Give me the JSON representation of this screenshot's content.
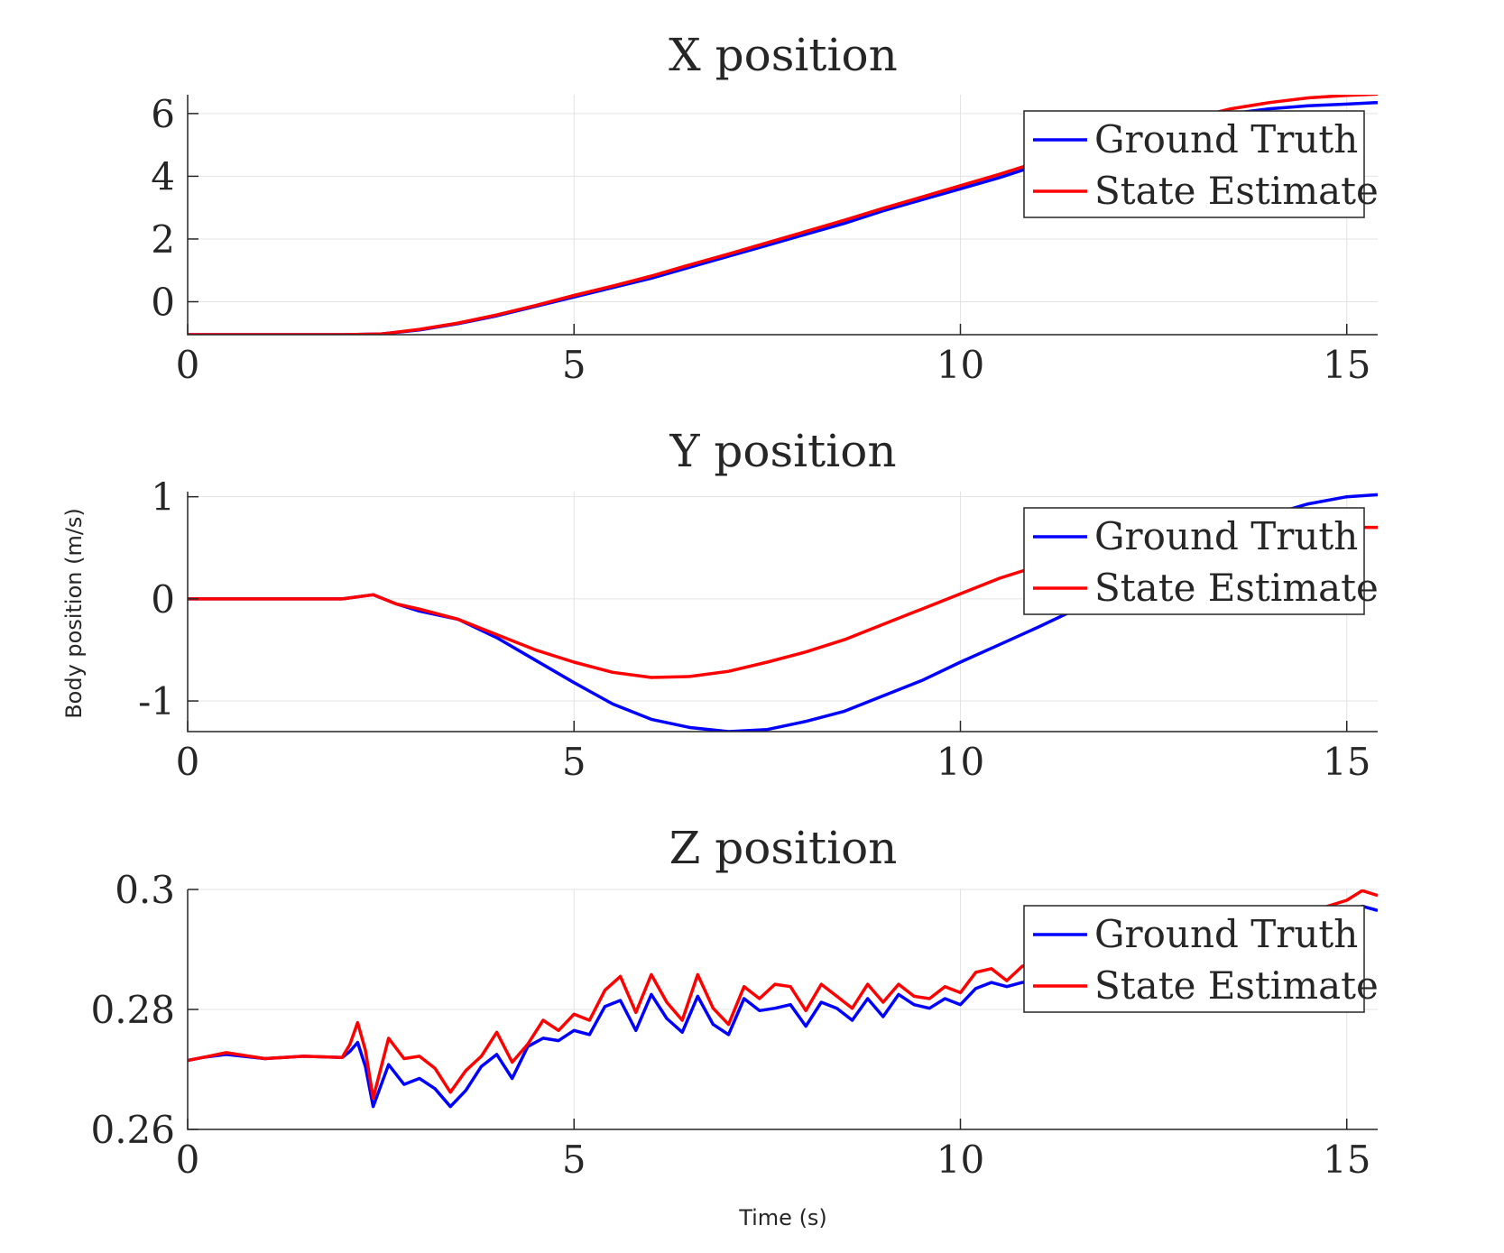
{
  "figure": {
    "ylabel": "Body position (m/s)",
    "xlabel": "Time (s)"
  },
  "colors": {
    "ground_truth": "#0000ff",
    "state_estimate": "#ff0000",
    "axis": "#262626",
    "grid": "#e3e3e3"
  },
  "chart_data": [
    {
      "type": "line",
      "title": "X position",
      "xlabel": "",
      "ylabel": "",
      "xlim": [
        0,
        15.4
      ],
      "ylim": [
        -1.05,
        6.6
      ],
      "xticks": [
        0,
        5,
        10,
        15
      ],
      "yticks": [
        0,
        2,
        4,
        6
      ],
      "ytick_labels": [
        "0",
        "2",
        "4",
        "6"
      ],
      "grid": true,
      "legend": "top-right",
      "series": [
        {
          "name": "Ground Truth",
          "color": "#0000ff",
          "x": [
            0,
            1,
            2,
            2.5,
            3,
            3.5,
            4,
            4.5,
            5,
            5.5,
            6,
            6.5,
            7,
            7.5,
            8,
            8.5,
            9,
            9.5,
            10,
            10.5,
            11,
            11.5,
            12,
            12.5,
            13,
            13.5,
            14,
            14.5,
            15,
            15.4
          ],
          "y": [
            -1.05,
            -1.05,
            -1.05,
            -1.03,
            -0.9,
            -0.7,
            -0.45,
            -0.15,
            0.15,
            0.45,
            0.75,
            1.1,
            1.45,
            1.8,
            2.15,
            2.5,
            2.9,
            3.25,
            3.6,
            3.95,
            4.35,
            4.7,
            5.05,
            5.4,
            5.75,
            6.0,
            6.15,
            6.25,
            6.3,
            6.35
          ]
        },
        {
          "name": "State Estimate",
          "color": "#ff0000",
          "x": [
            0,
            1,
            2,
            2.5,
            3,
            3.5,
            4,
            4.5,
            5,
            5.5,
            6,
            6.5,
            7,
            7.5,
            8,
            8.5,
            9,
            9.5,
            10,
            10.5,
            11,
            11.5,
            12,
            12.5,
            13,
            13.5,
            14,
            14.5,
            15,
            15.4
          ],
          "y": [
            -1.05,
            -1.05,
            -1.05,
            -1.03,
            -0.88,
            -0.68,
            -0.42,
            -0.12,
            0.2,
            0.5,
            0.82,
            1.18,
            1.52,
            1.88,
            2.24,
            2.6,
            2.98,
            3.34,
            3.7,
            4.06,
            4.45,
            4.8,
            5.15,
            5.5,
            5.85,
            6.15,
            6.35,
            6.5,
            6.58,
            6.62
          ]
        }
      ]
    },
    {
      "type": "line",
      "title": "Y position",
      "xlabel": "",
      "ylabel": "",
      "xlim": [
        0,
        15.4
      ],
      "ylim": [
        -1.3,
        1.05
      ],
      "xticks": [
        0,
        5,
        10,
        15
      ],
      "yticks": [
        -1,
        0,
        1
      ],
      "ytick_labels": [
        "-1",
        "0",
        "1"
      ],
      "grid": true,
      "legend": "top-right",
      "series": [
        {
          "name": "Ground Truth",
          "color": "#0000ff",
          "x": [
            0,
            1,
            2,
            2.4,
            2.7,
            3,
            3.5,
            4,
            4.5,
            5,
            5.5,
            6,
            6.5,
            7,
            7.5,
            8,
            8.5,
            9,
            9.5,
            10,
            10.5,
            11,
            11.5,
            12,
            12.5,
            13,
            13.5,
            14,
            14.5,
            15,
            15.4
          ],
          "y": [
            0,
            0,
            0,
            0.04,
            -0.05,
            -0.12,
            -0.2,
            -0.38,
            -0.6,
            -0.82,
            -1.03,
            -1.18,
            -1.26,
            -1.3,
            -1.28,
            -1.2,
            -1.1,
            -0.95,
            -0.8,
            -0.62,
            -0.45,
            -0.28,
            -0.1,
            0.1,
            0.3,
            0.5,
            0.68,
            0.82,
            0.93,
            1.0,
            1.02
          ]
        },
        {
          "name": "State Estimate",
          "color": "#ff0000",
          "x": [
            0,
            1,
            2,
            2.4,
            2.7,
            3,
            3.5,
            4,
            4.5,
            5,
            5.5,
            6,
            6.5,
            7,
            7.5,
            8,
            8.5,
            9,
            9.5,
            10,
            10.5,
            11,
            11.5,
            12,
            12.5,
            13,
            13.5,
            14,
            14.5,
            15,
            15.4
          ],
          "y": [
            0,
            0,
            0,
            0.04,
            -0.05,
            -0.1,
            -0.2,
            -0.35,
            -0.5,
            -0.62,
            -0.72,
            -0.77,
            -0.76,
            -0.71,
            -0.62,
            -0.52,
            -0.4,
            -0.25,
            -0.1,
            0.05,
            0.2,
            0.32,
            0.42,
            0.5,
            0.57,
            0.62,
            0.66,
            0.68,
            0.7,
            0.7,
            0.7
          ]
        }
      ]
    },
    {
      "type": "line",
      "title": "Z position",
      "xlabel": "Time (s)",
      "ylabel": "",
      "xlim": [
        0,
        15.4
      ],
      "ylim": [
        0.26,
        0.3
      ],
      "xticks": [
        0,
        5,
        10,
        15
      ],
      "yticks": [
        0.26,
        0.28,
        0.3
      ],
      "ytick_labels": [
        "0.26",
        "0.28",
        "0.3"
      ],
      "grid": true,
      "legend": "top-right",
      "series": [
        {
          "name": "Ground Truth",
          "color": "#0000ff",
          "x": [
            0,
            0.2,
            0.5,
            1,
            1.5,
            2,
            2.1,
            2.2,
            2.3,
            2.4,
            2.6,
            2.8,
            3,
            3.2,
            3.4,
            3.6,
            3.8,
            4,
            4.2,
            4.4,
            4.6,
            4.8,
            5,
            5.2,
            5.4,
            5.6,
            5.8,
            6,
            6.2,
            6.4,
            6.6,
            6.8,
            7,
            7.2,
            7.4,
            7.6,
            7.8,
            8,
            8.2,
            8.4,
            8.6,
            8.8,
            9,
            9.2,
            9.4,
            9.6,
            9.8,
            10,
            10.2,
            10.4,
            10.6,
            10.8,
            11,
            11.5,
            12,
            12.5,
            13,
            13.5,
            14,
            14.5,
            15,
            15.2,
            15.4
          ],
          "y": [
            0.2715,
            0.272,
            0.2725,
            0.2718,
            0.2722,
            0.272,
            0.273,
            0.2745,
            0.2705,
            0.2638,
            0.2708,
            0.2675,
            0.2685,
            0.2668,
            0.2638,
            0.2665,
            0.2705,
            0.2725,
            0.2685,
            0.2738,
            0.2752,
            0.2748,
            0.2765,
            0.2758,
            0.2805,
            0.2815,
            0.2765,
            0.2825,
            0.2785,
            0.2762,
            0.2822,
            0.2775,
            0.2758,
            0.2818,
            0.2798,
            0.2802,
            0.2808,
            0.2772,
            0.2812,
            0.2802,
            0.2782,
            0.2818,
            0.2788,
            0.2825,
            0.2808,
            0.2802,
            0.2818,
            0.2808,
            0.2835,
            0.2845,
            0.2838,
            0.2845,
            0.2848,
            0.2858,
            0.2868,
            0.2878,
            0.2888,
            0.2898,
            0.2915,
            0.2935,
            0.2955,
            0.2972,
            0.2965
          ]
        },
        {
          "name": "State Estimate",
          "color": "#ff0000",
          "x": [
            0,
            0.2,
            0.5,
            1,
            1.5,
            2,
            2.1,
            2.2,
            2.3,
            2.4,
            2.6,
            2.8,
            3,
            3.2,
            3.4,
            3.6,
            3.8,
            4,
            4.2,
            4.4,
            4.6,
            4.8,
            5,
            5.2,
            5.4,
            5.6,
            5.8,
            6,
            6.2,
            6.4,
            6.6,
            6.8,
            7,
            7.2,
            7.4,
            7.6,
            7.8,
            8,
            8.2,
            8.4,
            8.6,
            8.8,
            9,
            9.2,
            9.4,
            9.6,
            9.8,
            10,
            10.2,
            10.4,
            10.6,
            10.8,
            11,
            11.5,
            12,
            12.5,
            13,
            13.5,
            14,
            14.5,
            15,
            15.2,
            15.4
          ],
          "y": [
            0.2715,
            0.272,
            0.2728,
            0.2718,
            0.2722,
            0.272,
            0.2742,
            0.2778,
            0.2732,
            0.2652,
            0.2752,
            0.2718,
            0.2722,
            0.2702,
            0.2662,
            0.2698,
            0.2722,
            0.2762,
            0.2712,
            0.2742,
            0.2782,
            0.2765,
            0.2792,
            0.2782,
            0.2832,
            0.2855,
            0.2795,
            0.2858,
            0.2812,
            0.2782,
            0.2858,
            0.2802,
            0.2775,
            0.2838,
            0.2818,
            0.2842,
            0.2838,
            0.2798,
            0.2842,
            0.2822,
            0.2802,
            0.2842,
            0.2812,
            0.2842,
            0.2822,
            0.2818,
            0.2838,
            0.2828,
            0.2862,
            0.2868,
            0.2848,
            0.2872,
            0.2878,
            0.2888,
            0.2895,
            0.2902,
            0.2912,
            0.2922,
            0.2942,
            0.2962,
            0.2982,
            0.2998,
            0.299
          ]
        }
      ]
    }
  ]
}
